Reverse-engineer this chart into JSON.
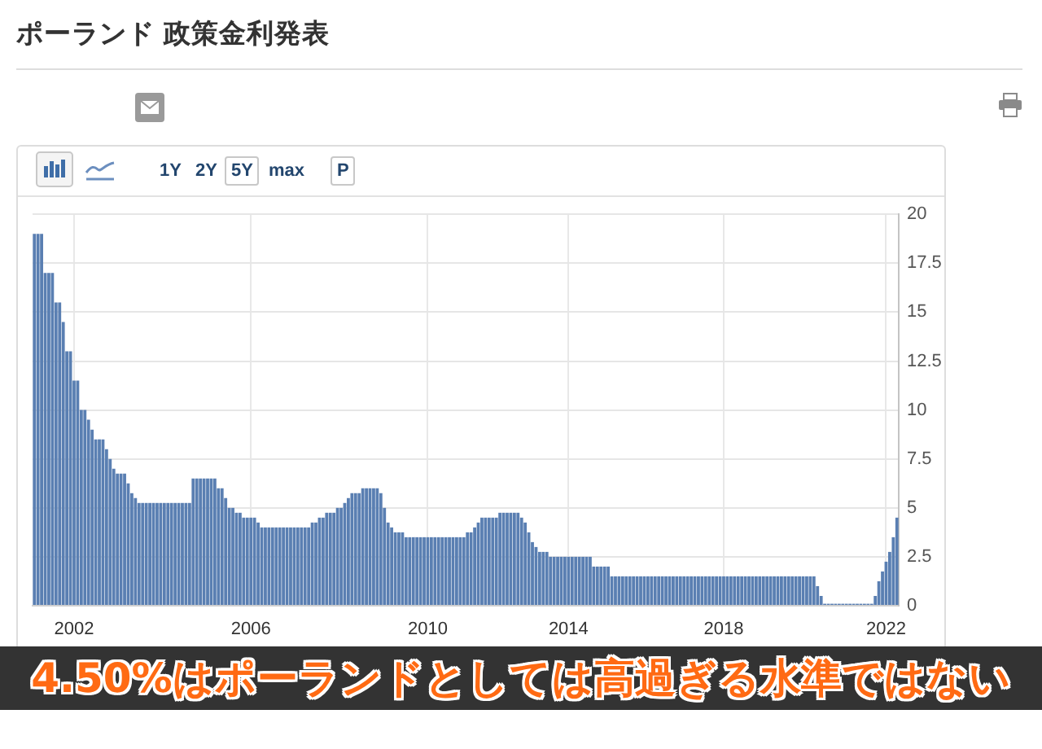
{
  "chart_data": {
    "type": "bar",
    "title": "ポーランド 政策金利発表",
    "annotations": [
      "1Y",
      "2Y",
      "5Y",
      "max",
      "P",
      "4.50%はポーランドとしては高過ぎる水準ではない"
    ],
    "categories": [
      null,
      null,
      null,
      null,
      null,
      null,
      null,
      null,
      null,
      null,
      null,
      "2002",
      null,
      null,
      null,
      null,
      null,
      null,
      null,
      null,
      null,
      null,
      null,
      null,
      null,
      null,
      null,
      null,
      null,
      null,
      null,
      null,
      null,
      null,
      null,
      null,
      null,
      null,
      null,
      null,
      null,
      null,
      null,
      null,
      null,
      null,
      null,
      null,
      null,
      null,
      null,
      null,
      null,
      null,
      null,
      null,
      null,
      null,
      null,
      null,
      "2006",
      null,
      null,
      null,
      null,
      null,
      null,
      null,
      null,
      null,
      null,
      null,
      null,
      null,
      null,
      null,
      null,
      null,
      null,
      null,
      null,
      null,
      null,
      null,
      null,
      null,
      null,
      null,
      null,
      null,
      null,
      null,
      null,
      null,
      null,
      null,
      null,
      null,
      null,
      null,
      null,
      null,
      null,
      null,
      null,
      null,
      null,
      null,
      null,
      "2010",
      null,
      null,
      null,
      null,
      null,
      null,
      null,
      null,
      null,
      null,
      null,
      null,
      null,
      null,
      null,
      null,
      null,
      null,
      null,
      null,
      null,
      null,
      null,
      null,
      null,
      null,
      null,
      null,
      null,
      null,
      null,
      null,
      null,
      null,
      null,
      null,
      null,
      null,
      "2014",
      null,
      null,
      null,
      null,
      null,
      null,
      null,
      null,
      null,
      null,
      null,
      null,
      null,
      null,
      null,
      null,
      null,
      null,
      null,
      null,
      null,
      null,
      null,
      null,
      null,
      null,
      null,
      null,
      null,
      null,
      null,
      null,
      null,
      null,
      null,
      null,
      null,
      null,
      null,
      null,
      null,
      null,
      "2018",
      null,
      null,
      null,
      null,
      null,
      null,
      null,
      null,
      null,
      null,
      null,
      null,
      null,
      null,
      null,
      null,
      null,
      null,
      null,
      null,
      null,
      null,
      null,
      null,
      null,
      null,
      null,
      null,
      null,
      null,
      null,
      null,
      null,
      null,
      null,
      null,
      null,
      null,
      null,
      null,
      null,
      null,
      null,
      null,
      "2022",
      null,
      null,
      null
    ],
    "values": [
      19,
      19,
      19,
      17,
      17,
      17,
      15.5,
      15.5,
      14.5,
      13,
      13,
      11.5,
      11.5,
      10,
      10,
      9.5,
      9,
      8.5,
      8.5,
      8.5,
      8,
      7.5,
      7,
      6.75,
      6.75,
      6.75,
      6.25,
      5.75,
      5.5,
      5.25,
      5.25,
      5.25,
      5.25,
      5.25,
      5.25,
      5.25,
      5.25,
      5.25,
      5.25,
      5.25,
      5.25,
      5.25,
      5.25,
      5.25,
      6.5,
      6.5,
      6.5,
      6.5,
      6.5,
      6.5,
      6.5,
      6,
      6,
      5.5,
      5,
      5,
      4.75,
      4.75,
      4.5,
      4.5,
      4.5,
      4.5,
      4.25,
      4,
      4,
      4,
      4,
      4,
      4,
      4,
      4,
      4,
      4,
      4,
      4,
      4,
      4,
      4.25,
      4.25,
      4.5,
      4.5,
      4.75,
      4.75,
      4.75,
      5,
      5,
      5.25,
      5.5,
      5.75,
      5.75,
      5.75,
      6,
      6,
      6,
      6,
      6,
      5.75,
      5,
      4.25,
      4,
      3.75,
      3.75,
      3.75,
      3.5,
      3.5,
      3.5,
      3.5,
      3.5,
      3.5,
      3.5,
      3.5,
      3.5,
      3.5,
      3.5,
      3.5,
      3.5,
      3.5,
      3.5,
      3.5,
      3.5,
      3.75,
      3.75,
      4,
      4.25,
      4.5,
      4.5,
      4.5,
      4.5,
      4.5,
      4.75,
      4.75,
      4.75,
      4.75,
      4.75,
      4.75,
      4.5,
      4.25,
      3.75,
      3.25,
      3,
      2.75,
      2.75,
      2.75,
      2.5,
      2.5,
      2.5,
      2.5,
      2.5,
      2.5,
      2.5,
      2.5,
      2.5,
      2.5,
      2.5,
      2.5,
      2,
      2,
      2,
      2,
      2,
      1.5,
      1.5,
      1.5,
      1.5,
      1.5,
      1.5,
      1.5,
      1.5,
      1.5,
      1.5,
      1.5,
      1.5,
      1.5,
      1.5,
      1.5,
      1.5,
      1.5,
      1.5,
      1.5,
      1.5,
      1.5,
      1.5,
      1.5,
      1.5,
      1.5,
      1.5,
      1.5,
      1.5,
      1.5,
      1.5,
      1.5,
      1.5,
      1.5,
      1.5,
      1.5,
      1.5,
      1.5,
      1.5,
      1.5,
      1.5,
      1.5,
      1.5,
      1.5,
      1.5,
      1.5,
      1.5,
      1.5,
      1.5,
      1.5,
      1.5,
      1.5,
      1.5,
      1.5,
      1.5,
      1.5,
      1.5,
      1.5,
      1,
      0.5,
      0.1,
      0.1,
      0.1,
      0.1,
      0.1,
      0.1,
      0.1,
      0.1,
      0.1,
      0.1,
      0.1,
      0.1,
      0.1,
      0.1,
      0.5,
      1.25,
      1.75,
      2.25,
      2.75,
      3.5,
      4.5
    ],
    "color": "#5a7fb2",
    "ylim": [
      0,
      20
    ],
    "yticks": [
      0,
      2.5,
      5,
      7.5,
      10,
      12.5,
      15,
      17.5,
      20
    ],
    "grid": true
  }
}
